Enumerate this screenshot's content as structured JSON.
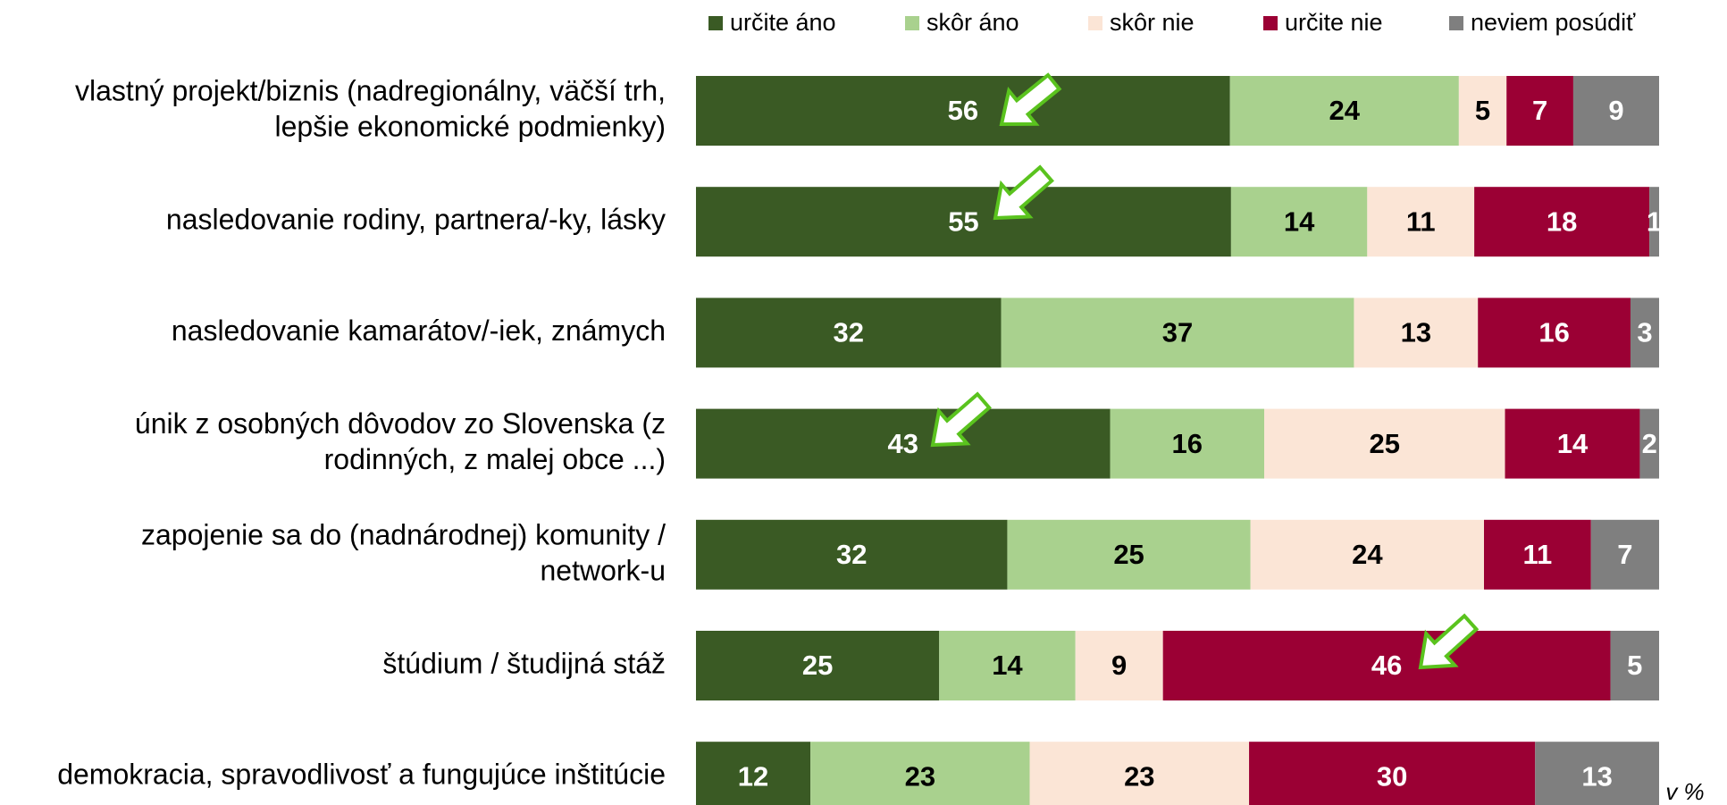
{
  "chart_data": {
    "type": "bar",
    "orientation": "horizontal",
    "stacked": "percent",
    "categories": [
      [
        "vlastný projekt/biznis (nadregionálny, väčší trh,",
        "lepšie ekonomické podmienky)"
      ],
      [
        "nasledovanie rodiny, partnera/-ky, lásky"
      ],
      [
        "nasledovanie kamarátov/-iek, známych"
      ],
      [
        "únik z osobných dôvodov zo Slovenska (z",
        "rodinných, z malej obce ...)"
      ],
      [
        "zapojenie sa do (nadnárodnej) komunity /",
        "network-u"
      ],
      [
        "štúdium / študijná stáž"
      ],
      [
        "demokracia, spravodlivosť a fungujúce inštitúcie"
      ]
    ],
    "series": [
      {
        "name": "určite áno",
        "color": "#3a5a24",
        "label_color": "#ffffff",
        "values": [
          56,
          55,
          32,
          43,
          32,
          25,
          12
        ]
      },
      {
        "name": "skôr áno",
        "color": "#a9d18e",
        "label_color": "#000000",
        "values": [
          24,
          14,
          37,
          16,
          25,
          14,
          23
        ]
      },
      {
        "name": "skôr nie",
        "color": "#fbe5d6",
        "label_color": "#000000",
        "values": [
          5,
          11,
          13,
          25,
          24,
          9,
          23
        ]
      },
      {
        "name": "určite nie",
        "color": "#9b0034",
        "label_color": "#ffffff",
        "values": [
          7,
          18,
          16,
          14,
          11,
          46,
          30
        ]
      },
      {
        "name": "neviem posúdiť",
        "color": "#7f7f7f",
        "label_color": "#ffffff",
        "values": [
          9,
          1,
          3,
          2,
          7,
          5,
          13
        ]
      }
    ],
    "unit_note": "v %",
    "legend": "top"
  }
}
